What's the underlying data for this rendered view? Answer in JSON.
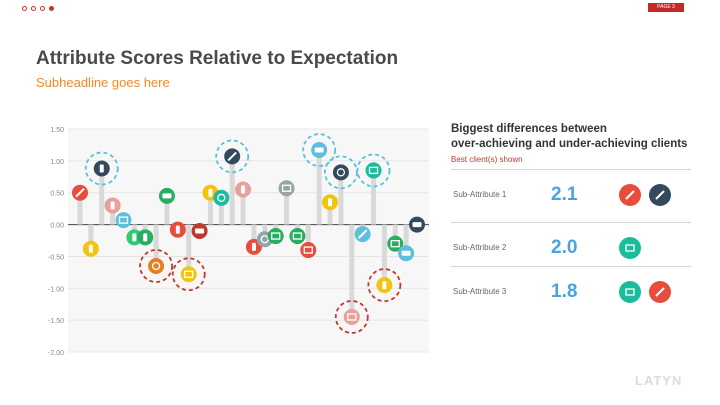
{
  "header": {
    "page_tag": "PAGE 3"
  },
  "title": "Attribute Scores Relative to Expectation",
  "subtitle": "Subheadline goes here",
  "colors": {
    "accent_blue": "#5bc0de",
    "accent_red": "#c0392b",
    "stem": "#d9d9d9"
  },
  "chart_data": {
    "type": "scatter",
    "style": "lollipop with icon markers",
    "yticks": [
      "1.50",
      "1.00",
      "0.50",
      "0.00",
      "-0.50",
      "-1.00",
      "-1.50",
      "-2.00"
    ],
    "ylim": [
      -2.0,
      1.5
    ],
    "grid": true,
    "points": [
      {
        "x": 1,
        "y": 0.5,
        "icon": "red-pen",
        "color": "#e74c3c",
        "circled": null
      },
      {
        "x": 2,
        "y": -0.38,
        "icon": "yellow-phone",
        "color": "#f1c40f",
        "circled": null
      },
      {
        "x": 3,
        "y": 0.88,
        "icon": "slippers",
        "color": "#34495e",
        "circled": "blue"
      },
      {
        "x": 4,
        "y": 0.3,
        "icon": "pink-hand",
        "color": "#e8a09a",
        "circled": null
      },
      {
        "x": 5,
        "y": 0.07,
        "icon": "jar",
        "color": "#5bc0de",
        "circled": null
      },
      {
        "x": 6,
        "y": -0.2,
        "icon": "cutlery",
        "color": "#2ecc71",
        "circled": null
      },
      {
        "x": 7,
        "y": -0.2,
        "icon": "green-bag",
        "color": "#27ae60",
        "circled": null
      },
      {
        "x": 8,
        "y": -0.65,
        "icon": "orange-ball",
        "color": "#e67e22",
        "circled": "red"
      },
      {
        "x": 9,
        "y": 0.45,
        "icon": "bus",
        "color": "#27ae60",
        "circled": null
      },
      {
        "x": 10,
        "y": -0.08,
        "icon": "red-bottle",
        "color": "#e74c3c",
        "circled": null
      },
      {
        "x": 11,
        "y": -0.78,
        "icon": "tv",
        "color": "#f1c40f",
        "circled": "red"
      },
      {
        "x": 12,
        "y": -0.1,
        "icon": "red-car",
        "color": "#c0392b",
        "circled": null
      },
      {
        "x": 13,
        "y": 0.5,
        "icon": "yellow-bulb",
        "color": "#f1c40f",
        "circled": null
      },
      {
        "x": 14,
        "y": 0.42,
        "icon": "snowflake",
        "color": "#1abc9c",
        "circled": null
      },
      {
        "x": 15,
        "y": 1.07,
        "icon": "guitar",
        "color": "#34495e",
        "circled": "blue"
      },
      {
        "x": 16,
        "y": 0.55,
        "icon": "utensils",
        "color": "#e8a09a",
        "circled": null
      },
      {
        "x": 17,
        "y": -0.35,
        "icon": "scissors",
        "color": "#e74c3c",
        "circled": null
      },
      {
        "x": 18,
        "y": -0.23,
        "icon": "rings",
        "color": "#95a5a6",
        "circled": null
      },
      {
        "x": 19,
        "y": -0.18,
        "icon": "green-tv",
        "color": "#27ae60",
        "circled": null
      },
      {
        "x": 20,
        "y": 0.57,
        "icon": "box",
        "color": "#95a5a6",
        "circled": null
      },
      {
        "x": 21,
        "y": -0.18,
        "icon": "radio",
        "color": "#27ae60",
        "circled": null
      },
      {
        "x": 22,
        "y": -0.4,
        "icon": "red-radio",
        "color": "#e74c3c",
        "circled": null
      },
      {
        "x": 23,
        "y": 1.17,
        "icon": "camera-bus",
        "color": "#5bc0de",
        "circled": "blue"
      },
      {
        "x": 24,
        "y": 0.35,
        "icon": "yellow-bottle",
        "color": "#f1c40f",
        "circled": null
      },
      {
        "x": 25,
        "y": 0.82,
        "icon": "clock",
        "color": "#34495e",
        "circled": "blue"
      },
      {
        "x": 26,
        "y": -1.45,
        "icon": "pink-printer",
        "color": "#e8a09a",
        "circled": "red"
      },
      {
        "x": 27,
        "y": -0.15,
        "icon": "blue-syringe",
        "color": "#5bc0de",
        "circled": null
      },
      {
        "x": 28,
        "y": 0.85,
        "icon": "green-keyboard",
        "color": "#1abc9c",
        "circled": "blue"
      },
      {
        "x": 29,
        "y": -0.95,
        "icon": "thermometer",
        "color": "#f1c40f",
        "circled": "red"
      },
      {
        "x": 30,
        "y": -0.3,
        "icon": "green-grater",
        "color": "#27ae60",
        "circled": null
      },
      {
        "x": 31,
        "y": -0.45,
        "icon": "ambulance",
        "color": "#5bc0de",
        "circled": null
      },
      {
        "x": 32,
        "y": 0.0,
        "icon": "truck",
        "color": "#34495e",
        "circled": null
      }
    ]
  },
  "panel": {
    "heading_line1": "Biggest differences between",
    "heading_line2": "over-achieving and under-achieving clients",
    "sub": "Best client(s) shown",
    "rows": [
      {
        "label": "Sub-Attribute 1",
        "value": "2.1",
        "icons": [
          "red-pen",
          "guitar"
        ]
      },
      {
        "label": "Sub-Attribute 2",
        "value": "2.0",
        "icons": [
          "green-keyboard"
        ]
      },
      {
        "label": "Sub-Attribute 3",
        "value": "1.8",
        "icons": [
          "green-keyboard",
          "red-pen"
        ]
      }
    ]
  },
  "footer": {
    "logo": "LATYN"
  }
}
